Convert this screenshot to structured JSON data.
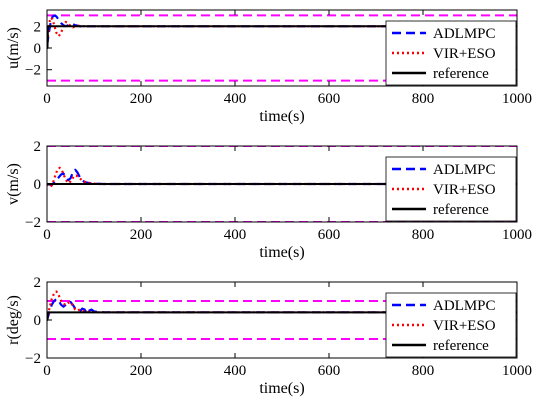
{
  "chart_data": [
    {
      "type": "line",
      "ylabel": "u(m/s)",
      "xlabel": "time(s)",
      "xlim": [
        0,
        1000
      ],
      "ylim": [
        -3.5,
        3.5
      ],
      "xticks": [
        0,
        200,
        400,
        600,
        800,
        1000
      ],
      "yticks": [
        -2,
        0,
        2
      ],
      "legend_position": "bottom-right",
      "bounds": [
        3,
        -3
      ],
      "bound_color": "#ff00ff",
      "series": [
        {
          "name": "ADLMPC",
          "color": "#0000ff",
          "dash": "dashed",
          "x": [
            0,
            4,
            8,
            12,
            16,
            20,
            25,
            30,
            35,
            40,
            45,
            50,
            55,
            60,
            65,
            70,
            80,
            100,
            1000
          ],
          "y": [
            0.2,
            1.4,
            2.4,
            2.9,
            3.0,
            2.9,
            2.6,
            2.3,
            2.1,
            2.0,
            2.1,
            2.2,
            2.2,
            2.1,
            2.05,
            2.0,
            2.0,
            2.0,
            2.0
          ]
        },
        {
          "name": "VIR+ESO",
          "color": "#ff0000",
          "dash": "dotted",
          "x": [
            0,
            3,
            6,
            9,
            12,
            16,
            20,
            25,
            30,
            35,
            40,
            45,
            50,
            55,
            60,
            70,
            80,
            90,
            100,
            1000
          ],
          "y": [
            0.1,
            1.5,
            2.5,
            2.8,
            2.6,
            2.0,
            1.4,
            1.1,
            1.4,
            2.0,
            2.4,
            2.3,
            2.0,
            1.9,
            2.0,
            2.05,
            2.0,
            2.0,
            2.0,
            2.0
          ]
        },
        {
          "name": "reference",
          "color": "#000000",
          "dash": "solid",
          "x": [
            0,
            1,
            2,
            1000
          ],
          "y": [
            0,
            0,
            2,
            2
          ]
        }
      ]
    },
    {
      "type": "line",
      "ylabel": "v(m/s)",
      "xlabel": "time(s)",
      "xlim": [
        0,
        1000
      ],
      "ylim": [
        -2,
        2
      ],
      "xticks": [
        0,
        200,
        400,
        600,
        800,
        1000
      ],
      "yticks": [
        -2,
        0,
        2
      ],
      "legend_position": "bottom-right",
      "bounds": [
        2,
        -2
      ],
      "bound_color": "#ff00ff",
      "series": [
        {
          "name": "ADLMPC",
          "color": "#0000ff",
          "dash": "dashed",
          "x": [
            0,
            10,
            20,
            25,
            30,
            35,
            40,
            45,
            50,
            55,
            60,
            65,
            70,
            75,
            80,
            90,
            100,
            120,
            1000
          ],
          "y": [
            0,
            -0.05,
            0.2,
            0.35,
            0.5,
            0.55,
            0.4,
            0.2,
            0.3,
            0.6,
            0.75,
            0.6,
            0.35,
            0.2,
            0.1,
            0.05,
            0.02,
            0.0,
            0.0
          ]
        },
        {
          "name": "VIR+ESO",
          "color": "#ff0000",
          "dash": "dotted",
          "x": [
            0,
            8,
            12,
            17,
            22,
            27,
            32,
            37,
            42,
            47,
            52,
            57,
            62,
            67,
            72,
            77,
            85,
            95,
            110,
            1000
          ],
          "y": [
            0,
            -0.15,
            0.0,
            0.4,
            0.75,
            0.85,
            0.7,
            0.4,
            0.15,
            0.05,
            0.2,
            0.4,
            0.45,
            0.35,
            0.25,
            0.15,
            0.08,
            0.03,
            0.0,
            0.0
          ]
        },
        {
          "name": "reference",
          "color": "#000000",
          "dash": "solid",
          "x": [
            0,
            1000
          ],
          "y": [
            0,
            0
          ]
        }
      ]
    },
    {
      "type": "line",
      "ylabel": "r(deg/s)",
      "xlabel": "time(s)",
      "xlim": [
        0,
        1000
      ],
      "ylim": [
        -2,
        2
      ],
      "xticks": [
        0,
        200,
        400,
        600,
        800,
        1000
      ],
      "yticks": [
        -2,
        0,
        2
      ],
      "legend_position": "bottom-right",
      "bounds": [
        1,
        -1
      ],
      "bound_color": "#ff00ff",
      "series": [
        {
          "name": "ADLMPC",
          "color": "#0000ff",
          "dash": "dashed",
          "x": [
            0,
            5,
            10,
            15,
            20,
            25,
            30,
            35,
            40,
            45,
            50,
            55,
            60,
            65,
            70,
            75,
            80,
            85,
            90,
            95,
            100,
            120,
            1000
          ],
          "y": [
            0.0,
            0.4,
            0.8,
            1.0,
            1.1,
            1.0,
            0.8,
            0.7,
            0.8,
            0.9,
            0.95,
            0.8,
            0.6,
            0.5,
            0.45,
            0.6,
            0.55,
            0.35,
            0.5,
            0.55,
            0.45,
            0.4,
            0.4
          ]
        },
        {
          "name": "VIR+ESO",
          "color": "#ff0000",
          "dash": "dotted",
          "x": [
            0,
            5,
            10,
            15,
            20,
            25,
            30,
            35,
            40,
            45,
            50,
            55,
            60,
            65,
            70,
            75,
            80,
            90,
            100,
            110,
            1000
          ],
          "y": [
            0.0,
            0.6,
            1.1,
            1.4,
            1.5,
            1.3,
            1.0,
            0.85,
            0.8,
            0.9,
            0.95,
            0.75,
            0.55,
            0.5,
            0.55,
            0.5,
            0.45,
            0.42,
            0.4,
            0.4,
            0.4
          ]
        },
        {
          "name": "reference",
          "color": "#000000",
          "dash": "solid",
          "x": [
            0,
            1,
            2,
            1000
          ],
          "y": [
            0,
            0,
            0.4,
            0.4
          ]
        }
      ]
    }
  ]
}
